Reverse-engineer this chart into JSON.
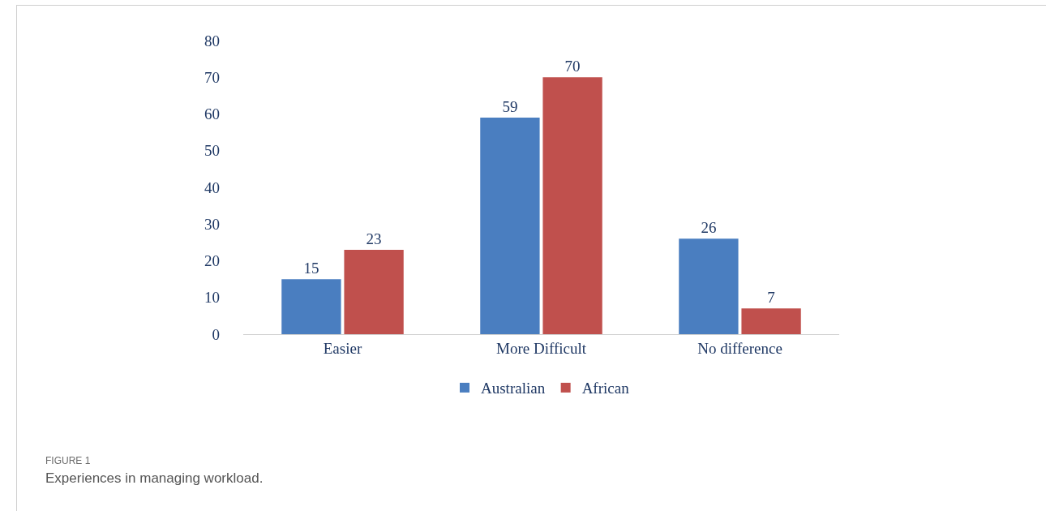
{
  "chart_data": {
    "type": "bar",
    "categories": [
      "Easier",
      "More Difficult",
      "No difference"
    ],
    "series": [
      {
        "name": "Australian",
        "color": "#4a7ec0",
        "values": [
          15,
          59,
          26
        ]
      },
      {
        "name": "African",
        "color": "#c0504d",
        "values": [
          23,
          70,
          7
        ]
      }
    ],
    "ylim": [
      0,
      80
    ],
    "yticks": [
      0,
      10,
      20,
      30,
      40,
      50,
      60,
      70,
      80
    ],
    "grid": false,
    "legend": "bottom",
    "data_labels": true,
    "annotations": [
      "FIGURE 1",
      "Experiences in managing workload."
    ]
  }
}
